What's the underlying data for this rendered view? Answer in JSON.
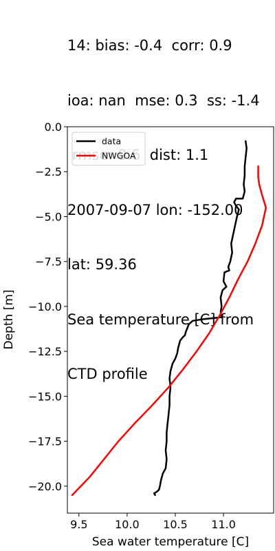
{
  "chart_data": {
    "type": "line",
    "title_lines": [
      "14: bias: -0.4  corr: 0.9",
      "ioa: nan  mse: 0.3  ss: -1.4",
      " rmse: 0.6  dist: 1.1",
      "2007-09-07 lon: -152.00",
      "lat: 59.36",
      "Sea temperature [C] from",
      "CTD profile"
    ],
    "xlabel": "Sea water temperature [C]",
    "ylabel": "Depth [m]",
    "xlim": [
      9.38,
      11.52
    ],
    "ylim": [
      -21.5,
      0.0
    ],
    "xticks": [
      9.5,
      10.0,
      10.5,
      11.0
    ],
    "xtick_labels": [
      "9.5",
      "10.0",
      "10.5",
      "11.0"
    ],
    "yticks": [
      0.0,
      -2.5,
      -5.0,
      -7.5,
      -10.0,
      -12.5,
      -15.0,
      -17.5,
      -20.0
    ],
    "ytick_labels": [
      "0.0",
      "−2.5",
      "−5.0",
      "−7.5",
      "−10.0",
      "−12.5",
      "−15.0",
      "−17.5",
      "−20.0"
    ],
    "legend": {
      "placement": "top-left"
    },
    "series": [
      {
        "name": "data",
        "color": "#000000",
        "points": [
          [
            11.23,
            -0.8
          ],
          [
            11.24,
            -1.2
          ],
          [
            11.23,
            -1.7
          ],
          [
            11.22,
            -2.2
          ],
          [
            11.22,
            -2.7
          ],
          [
            11.21,
            -3.2
          ],
          [
            11.22,
            -3.6
          ],
          [
            11.2,
            -4.0
          ],
          [
            11.13,
            -4.0
          ],
          [
            11.11,
            -4.2
          ],
          [
            11.13,
            -4.4
          ],
          [
            11.16,
            -4.6
          ],
          [
            11.14,
            -5.0
          ],
          [
            11.12,
            -5.5
          ],
          [
            11.1,
            -6.0
          ],
          [
            11.08,
            -6.5
          ],
          [
            11.09,
            -7.0
          ],
          [
            11.07,
            -7.5
          ],
          [
            11.05,
            -7.8
          ],
          [
            11.06,
            -8.0
          ],
          [
            11.01,
            -8.1
          ],
          [
            11.0,
            -8.6
          ],
          [
            11.03,
            -8.9
          ],
          [
            10.99,
            -9.1
          ],
          [
            10.97,
            -9.5
          ],
          [
            10.98,
            -10.0
          ],
          [
            10.97,
            -10.3
          ],
          [
            10.98,
            -10.6
          ],
          [
            10.8,
            -10.7
          ],
          [
            10.68,
            -10.8
          ],
          [
            10.64,
            -11.0
          ],
          [
            10.61,
            -11.4
          ],
          [
            10.6,
            -11.6
          ],
          [
            10.58,
            -11.7
          ],
          [
            10.55,
            -11.9
          ],
          [
            10.53,
            -12.3
          ],
          [
            10.52,
            -12.6
          ],
          [
            10.5,
            -12.9
          ],
          [
            10.47,
            -13.2
          ],
          [
            10.45,
            -13.6
          ],
          [
            10.44,
            -14.0
          ],
          [
            10.45,
            -14.5
          ],
          [
            10.44,
            -15.0
          ],
          [
            10.44,
            -15.5
          ],
          [
            10.43,
            -16.0
          ],
          [
            10.42,
            -16.5
          ],
          [
            10.41,
            -17.0
          ],
          [
            10.41,
            -17.5
          ],
          [
            10.4,
            -18.0
          ],
          [
            10.41,
            -18.5
          ],
          [
            10.4,
            -19.0
          ],
          [
            10.37,
            -19.3
          ],
          [
            10.35,
            -19.7
          ],
          [
            10.34,
            -20.0
          ],
          [
            10.33,
            -20.2
          ],
          [
            10.31,
            -20.3
          ],
          [
            10.28,
            -20.4
          ],
          [
            10.29,
            -20.5
          ]
        ]
      },
      {
        "name": "NWGOA",
        "color": "#ff0000",
        "points": [
          [
            11.36,
            -2.2
          ],
          [
            11.36,
            -2.8
          ],
          [
            11.37,
            -3.2
          ],
          [
            11.4,
            -3.8
          ],
          [
            11.44,
            -4.5
          ],
          [
            11.4,
            -5.5
          ],
          [
            11.33,
            -6.5
          ],
          [
            11.25,
            -7.5
          ],
          [
            11.15,
            -8.5
          ],
          [
            11.06,
            -9.5
          ],
          [
            10.96,
            -10.5
          ],
          [
            10.85,
            -11.5
          ],
          [
            10.72,
            -12.5
          ],
          [
            10.58,
            -13.5
          ],
          [
            10.43,
            -14.5
          ],
          [
            10.26,
            -15.5
          ],
          [
            10.08,
            -16.5
          ],
          [
            9.91,
            -17.5
          ],
          [
            9.76,
            -18.5
          ],
          [
            9.61,
            -19.5
          ],
          [
            9.43,
            -20.5
          ]
        ]
      }
    ]
  }
}
